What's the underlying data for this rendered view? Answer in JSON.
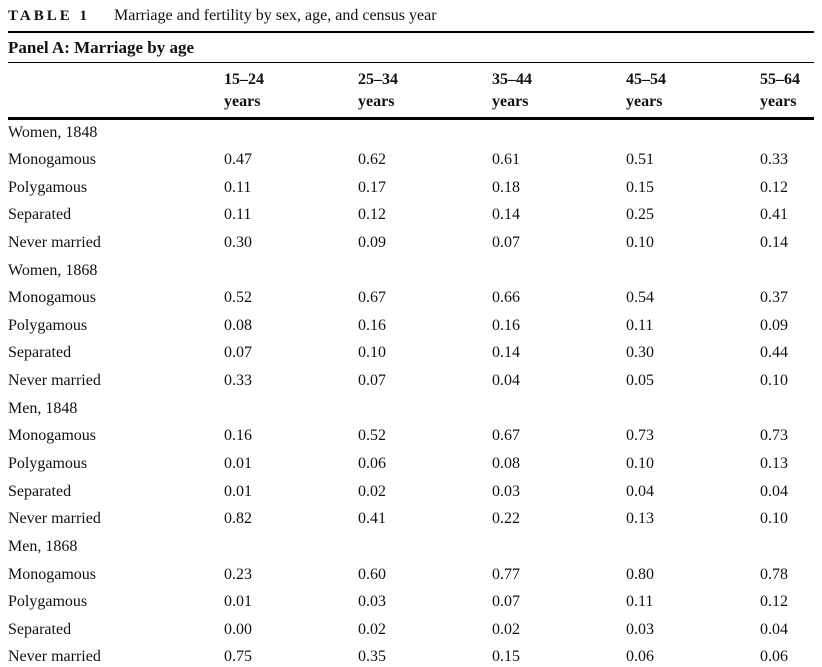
{
  "caption": {
    "label": "TABLE 1",
    "title": "Marriage and fertility by sex, age, and census year"
  },
  "panel": {
    "title": "Panel A: Marriage by age"
  },
  "chart_data": {
    "type": "table",
    "column_headers": [
      {
        "range": "15–24",
        "unit": "years"
      },
      {
        "range": "25–34",
        "unit": "years"
      },
      {
        "range": "35–44",
        "unit": "years"
      },
      {
        "range": "45–54",
        "unit": "years"
      },
      {
        "range": "55–64",
        "unit": "years"
      }
    ],
    "groups": [
      {
        "label": "Women, 1848",
        "rows": [
          {
            "label": "Monogamous",
            "values": [
              "0.47",
              "0.62",
              "0.61",
              "0.51",
              "0.33"
            ]
          },
          {
            "label": "Polygamous",
            "values": [
              "0.11",
              "0.17",
              "0.18",
              "0.15",
              "0.12"
            ]
          },
          {
            "label": "Separated",
            "values": [
              "0.11",
              "0.12",
              "0.14",
              "0.25",
              "0.41"
            ]
          },
          {
            "label": "Never married",
            "values": [
              "0.30",
              "0.09",
              "0.07",
              "0.10",
              "0.14"
            ]
          }
        ]
      },
      {
        "label": "Women, 1868",
        "rows": [
          {
            "label": "Monogamous",
            "values": [
              "0.52",
              "0.67",
              "0.66",
              "0.54",
              "0.37"
            ]
          },
          {
            "label": "Polygamous",
            "values": [
              "0.08",
              "0.16",
              "0.16",
              "0.11",
              "0.09"
            ]
          },
          {
            "label": "Separated",
            "values": [
              "0.07",
              "0.10",
              "0.14",
              "0.30",
              "0.44"
            ]
          },
          {
            "label": "Never married",
            "values": [
              "0.33",
              "0.07",
              "0.04",
              "0.05",
              "0.10"
            ]
          }
        ]
      },
      {
        "label": "Men, 1848",
        "rows": [
          {
            "label": "Monogamous",
            "values": [
              "0.16",
              "0.52",
              "0.67",
              "0.73",
              "0.73"
            ]
          },
          {
            "label": "Polygamous",
            "values": [
              "0.01",
              "0.06",
              "0.08",
              "0.10",
              "0.13"
            ]
          },
          {
            "label": "Separated",
            "values": [
              "0.01",
              "0.02",
              "0.03",
              "0.04",
              "0.04"
            ]
          },
          {
            "label": "Never married",
            "values": [
              "0.82",
              "0.41",
              "0.22",
              "0.13",
              "0.10"
            ]
          }
        ]
      },
      {
        "label": "Men, 1868",
        "rows": [
          {
            "label": "Monogamous",
            "values": [
              "0.23",
              "0.60",
              "0.77",
              "0.80",
              "0.78"
            ]
          },
          {
            "label": "Polygamous",
            "values": [
              "0.01",
              "0.03",
              "0.07",
              "0.11",
              "0.12"
            ]
          },
          {
            "label": "Separated",
            "values": [
              "0.00",
              "0.02",
              "0.02",
              "0.03",
              "0.04"
            ]
          },
          {
            "label": "Never married",
            "values": [
              "0.75",
              "0.35",
              "0.15",
              "0.06",
              "0.06"
            ]
          }
        ]
      }
    ]
  },
  "colors": {
    "text": "#111111",
    "rule": "#000000",
    "background": "#ffffff"
  }
}
